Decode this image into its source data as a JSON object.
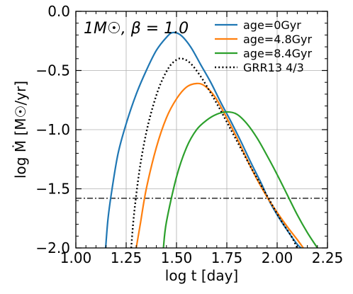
{
  "chart_data": {
    "type": "line",
    "annotation": "1M☉, β = 1.0",
    "xlabel": "log t [day]",
    "ylabel": "log Ṁ [M☉/yr]",
    "xlim": [
      1.0,
      2.25
    ],
    "ylim": [
      -2.0,
      0.0
    ],
    "xticks": [
      1.0,
      1.25,
      1.5,
      1.75,
      2.0,
      2.25
    ],
    "xtick_labels": [
      "1.00",
      "1.25",
      "1.50",
      "1.75",
      "2.00",
      "2.25"
    ],
    "yticks": [
      0.0,
      -0.5,
      -1.0,
      -1.5,
      -2.0
    ],
    "ytick_labels": [
      "0.0",
      "−0.5",
      "−1.0",
      "−1.5",
      "−2.0"
    ],
    "grid": true,
    "legend_position": "top-right",
    "hline": {
      "y": -1.58,
      "style": "dashdot",
      "color": "#000000"
    },
    "series": [
      {
        "name": "age=0Gyr",
        "color": "#1f77b4",
        "style": "solid",
        "points": [
          [
            1.148,
            -2.0
          ],
          [
            1.16,
            -1.75
          ],
          [
            1.18,
            -1.5
          ],
          [
            1.21,
            -1.2
          ],
          [
            1.25,
            -0.95
          ],
          [
            1.3,
            -0.7
          ],
          [
            1.35,
            -0.5
          ],
          [
            1.4,
            -0.33
          ],
          [
            1.45,
            -0.22
          ],
          [
            1.48,
            -0.18
          ],
          [
            1.52,
            -0.2
          ],
          [
            1.57,
            -0.3
          ],
          [
            1.62,
            -0.45
          ],
          [
            1.67,
            -0.6
          ],
          [
            1.72,
            -0.77
          ],
          [
            1.77,
            -0.93
          ],
          [
            1.82,
            -1.1
          ],
          [
            1.87,
            -1.28
          ],
          [
            1.92,
            -1.45
          ],
          [
            1.96,
            -1.6
          ],
          [
            2.0,
            -1.72
          ],
          [
            2.05,
            -1.85
          ],
          [
            2.1,
            -1.97
          ],
          [
            2.12,
            -2.0
          ]
        ]
      },
      {
        "name": "age=4.8Gyr",
        "color": "#ff7f0e",
        "style": "solid",
        "points": [
          [
            1.3,
            -2.0
          ],
          [
            1.32,
            -1.8
          ],
          [
            1.35,
            -1.5
          ],
          [
            1.4,
            -1.15
          ],
          [
            1.45,
            -0.9
          ],
          [
            1.5,
            -0.74
          ],
          [
            1.55,
            -0.64
          ],
          [
            1.6,
            -0.61
          ],
          [
            1.64,
            -0.63
          ],
          [
            1.69,
            -0.72
          ],
          [
            1.74,
            -0.87
          ],
          [
            1.8,
            -1.07
          ],
          [
            1.85,
            -1.25
          ],
          [
            1.9,
            -1.42
          ],
          [
            1.95,
            -1.57
          ],
          [
            2.0,
            -1.7
          ],
          [
            2.05,
            -1.82
          ],
          [
            2.1,
            -1.93
          ],
          [
            2.13,
            -2.0
          ]
        ]
      },
      {
        "name": "age=8.4Gyr",
        "color": "#2ca02c",
        "style": "solid",
        "points": [
          [
            1.435,
            -2.0
          ],
          [
            1.45,
            -1.78
          ],
          [
            1.5,
            -1.4
          ],
          [
            1.55,
            -1.15
          ],
          [
            1.6,
            -1.0
          ],
          [
            1.65,
            -0.92
          ],
          [
            1.7,
            -0.87
          ],
          [
            1.75,
            -0.85
          ],
          [
            1.8,
            -0.87
          ],
          [
            1.85,
            -0.95
          ],
          [
            1.9,
            -1.07
          ],
          [
            1.95,
            -1.22
          ],
          [
            2.0,
            -1.38
          ],
          [
            2.05,
            -1.55
          ],
          [
            2.1,
            -1.72
          ],
          [
            2.15,
            -1.87
          ],
          [
            2.2,
            -2.0
          ]
        ]
      },
      {
        "name": "GRR13 4/3",
        "color": "#000000",
        "style": "dotted",
        "points": [
          [
            1.275,
            -2.0
          ],
          [
            1.29,
            -1.7
          ],
          [
            1.32,
            -1.3
          ],
          [
            1.36,
            -0.95
          ],
          [
            1.41,
            -0.66
          ],
          [
            1.46,
            -0.48
          ],
          [
            1.5,
            -0.41
          ],
          [
            1.53,
            -0.4
          ],
          [
            1.57,
            -0.44
          ],
          [
            1.62,
            -0.55
          ],
          [
            1.67,
            -0.69
          ],
          [
            1.72,
            -0.84
          ],
          [
            1.77,
            -1.0
          ],
          [
            1.82,
            -1.16
          ],
          [
            1.87,
            -1.32
          ],
          [
            1.92,
            -1.47
          ],
          [
            1.97,
            -1.62
          ],
          [
            2.02,
            -1.77
          ],
          [
            2.07,
            -1.9
          ],
          [
            2.1,
            -2.0
          ]
        ]
      }
    ]
  }
}
